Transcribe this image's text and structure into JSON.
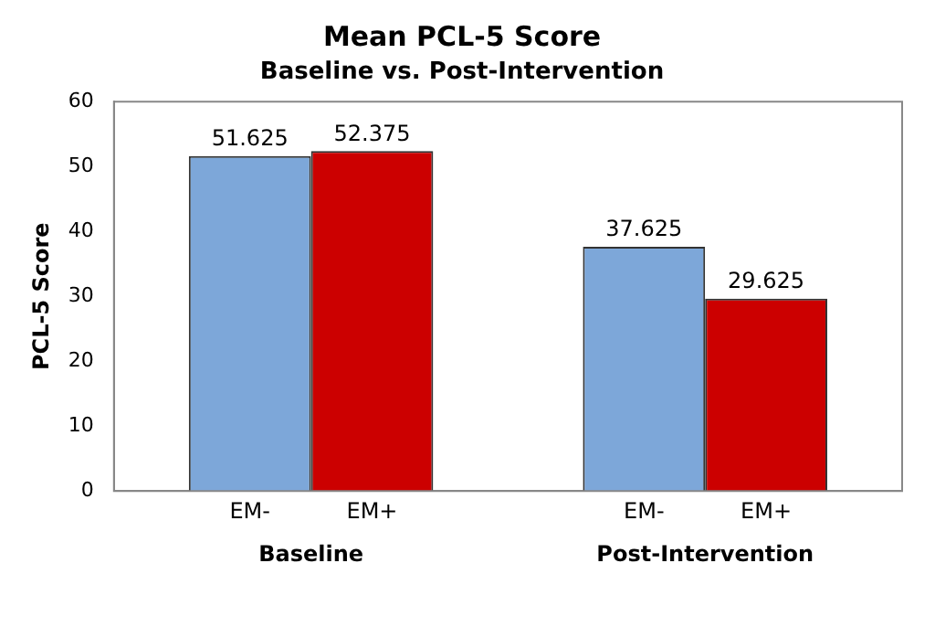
{
  "chart_data": {
    "type": "bar",
    "title": "Mean PCL-5 Score",
    "subtitle": "Baseline vs. Post-Intervention",
    "ylabel": "PCL-5 Score",
    "categories": [
      "Baseline",
      "Post-Intervention"
    ],
    "series": [
      {
        "name": "EM-",
        "color": "#7da7d9",
        "values": [
          51.625,
          37.625
        ]
      },
      {
        "name": "EM+",
        "color": "#cc0000",
        "values": [
          52.375,
          29.625
        ]
      }
    ],
    "ylim": [
      0,
      60
    ],
    "yticks": [
      0,
      10,
      20,
      30,
      40,
      50,
      60
    ],
    "data_labels": true,
    "legend": false
  }
}
